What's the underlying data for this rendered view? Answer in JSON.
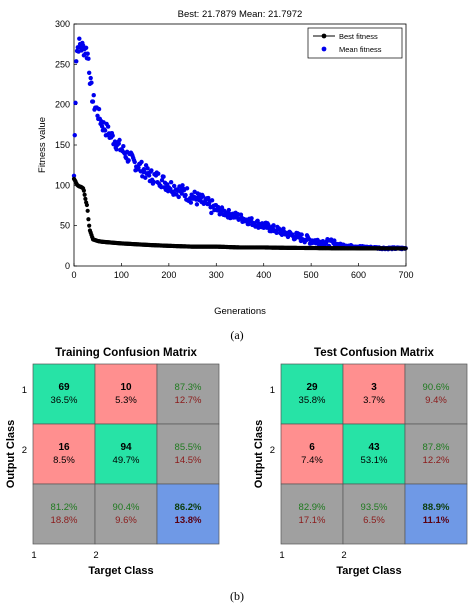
{
  "panel_a": {
    "caption": "(a)",
    "title": "Best: 21.7879 Mean: 21.7972"
  },
  "panel_b": {
    "caption": "(b)"
  },
  "colors": {
    "best": "#000000",
    "mean": "#0000ee",
    "cell_correct": "#27e3a6",
    "cell_wrong": "#ff8f8f",
    "cell_summary": "#a0a0a0",
    "cell_total": "#6f99e6",
    "pct_good": "#1f7a1f",
    "pct_bad": "#8b1a1a",
    "total_pct_good": "#0b3d0b",
    "total_pct_bad": "#5a0010"
  },
  "chart_data": [
    {
      "type": "scatter",
      "title": "Best: 21.7879 Mean: 21.7972",
      "xlabel": "Generations",
      "ylabel": "Fitness value",
      "xlim": [
        0,
        700
      ],
      "ylim": [
        0,
        300
      ],
      "xticks": [
        "0",
        "100",
        "200",
        "300",
        "400",
        "500",
        "600",
        "700"
      ],
      "yticks": [
        "0",
        "50",
        "100",
        "150",
        "200",
        "250",
        "300"
      ],
      "legend": "top-right",
      "grid": false,
      "series": [
        {
          "name": "Best fitness",
          "color": "#000000",
          "x": [
            0,
            3,
            6,
            10,
            15,
            20,
            25,
            28,
            30,
            33,
            36,
            40,
            45,
            50,
            60,
            80,
            100,
            130,
            160,
            200,
            250,
            300,
            350,
            400,
            450,
            500,
            550,
            600,
            650,
            700
          ],
          "y": [
            108,
            105,
            101,
            99,
            98,
            96,
            80,
            74,
            60,
            45,
            40,
            33,
            32,
            31,
            30,
            29,
            28,
            27,
            26,
            25,
            24,
            24,
            23,
            23,
            22.5,
            22.3,
            22,
            21.9,
            21.8,
            21.79
          ]
        },
        {
          "name": "Mean fitness",
          "color": "#0000ee",
          "x": [
            0,
            5,
            10,
            15,
            20,
            25,
            30,
            35,
            40,
            50,
            60,
            80,
            100,
            120,
            140,
            160,
            180,
            200,
            230,
            260,
            300,
            340,
            380,
            420,
            460,
            500,
            540,
            580,
            620,
            660,
            700
          ],
          "y": [
            112,
            265,
            275,
            272,
            270,
            268,
            260,
            225,
            205,
            190,
            175,
            160,
            145,
            132,
            122,
            112,
            108,
            100,
            92,
            83,
            70,
            62,
            54,
            46,
            38,
            32,
            28,
            25,
            23,
            22,
            21.8
          ]
        }
      ]
    },
    {
      "type": "heatmap",
      "title": "Training Confusion Matrix",
      "xlabel": "Target Class",
      "ylabel": "Output Class",
      "col_labels": [
        "1",
        "2"
      ],
      "row_labels": [
        "1",
        "2"
      ],
      "cells": [
        [
          {
            "count": "69",
            "pct": "36.5%"
          },
          {
            "count": "10",
            "pct": "5.3%"
          },
          {
            "good": "87.3%",
            "bad": "12.7%"
          }
        ],
        [
          {
            "count": "16",
            "pct": "8.5%"
          },
          {
            "count": "94",
            "pct": "49.7%"
          },
          {
            "good": "85.5%",
            "bad": "14.5%"
          }
        ],
        [
          {
            "good": "81.2%",
            "bad": "18.8%"
          },
          {
            "good": "90.4%",
            "bad": "9.6%"
          },
          {
            "good": "86.2%",
            "bad": "13.8%"
          }
        ]
      ]
    },
    {
      "type": "heatmap",
      "title": "Test Confusion Matrix",
      "xlabel": "Target Class",
      "ylabel": "Output Class",
      "col_labels": [
        "1",
        "2"
      ],
      "row_labels": [
        "1",
        "2"
      ],
      "cells": [
        [
          {
            "count": "29",
            "pct": "35.8%"
          },
          {
            "count": "3",
            "pct": "3.7%"
          },
          {
            "good": "90.6%",
            "bad": "9.4%"
          }
        ],
        [
          {
            "count": "6",
            "pct": "7.4%"
          },
          {
            "count": "43",
            "pct": "53.1%"
          },
          {
            "good": "87.8%",
            "bad": "12.2%"
          }
        ],
        [
          {
            "good": "82.9%",
            "bad": "17.1%"
          },
          {
            "good": "93.5%",
            "bad": "6.5%"
          },
          {
            "good": "88.9%",
            "bad": "11.1%"
          }
        ]
      ]
    }
  ]
}
